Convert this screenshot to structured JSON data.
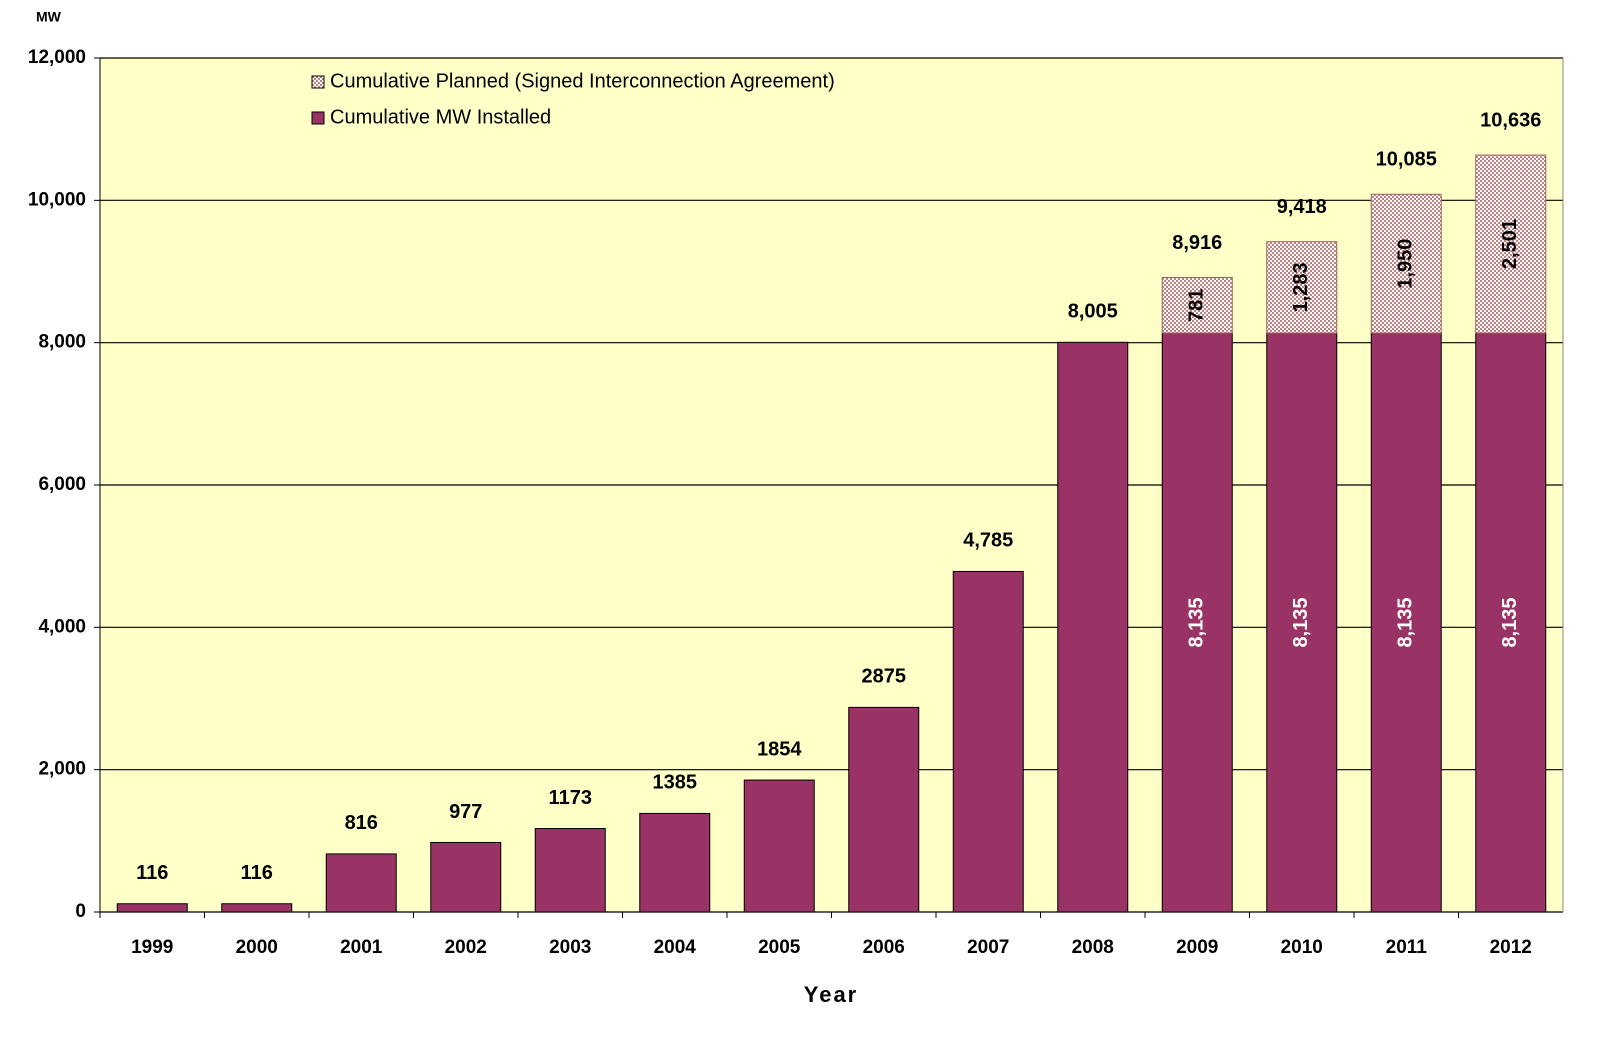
{
  "chart_data": {
    "type": "stacked_bar",
    "y_label": "MW",
    "x_label": "Year",
    "categories": [
      "1999",
      "2000",
      "2001",
      "2002",
      "2003",
      "2004",
      "2005",
      "2006",
      "2007",
      "2008",
      "2009",
      "2010",
      "2011",
      "2012"
    ],
    "series": [
      {
        "name": "Cumulative MW Installed",
        "color": "#993366",
        "values": [
          116,
          116,
          816,
          977,
          1173,
          1385,
          1854,
          2875,
          4785,
          8005,
          8135,
          8135,
          8135,
          8135
        ],
        "value_labels": [
          "116",
          "116",
          "816",
          "977",
          "1173",
          "1385",
          "1854",
          "2875",
          "4,785",
          "8,005",
          "8,135",
          "8,135",
          "8,135",
          "8,135"
        ]
      },
      {
        "name": "Cumulative Planned (Signed Interconnection Agreement)",
        "color": "#c08080",
        "values": [
          null,
          null,
          null,
          null,
          null,
          null,
          null,
          null,
          null,
          null,
          781,
          1283,
          1950,
          2501
        ],
        "value_labels": [
          null,
          null,
          null,
          null,
          null,
          null,
          null,
          null,
          null,
          null,
          "781",
          "1,283",
          "1,950",
          "2,501"
        ]
      }
    ],
    "totals": {
      "values": [
        null,
        null,
        null,
        null,
        null,
        null,
        null,
        null,
        null,
        null,
        8916,
        9418,
        10085,
        10636
      ],
      "value_labels": [
        null,
        null,
        null,
        null,
        null,
        null,
        null,
        null,
        null,
        null,
        "8,916",
        "9,418",
        "10,085",
        "10,636"
      ]
    },
    "ylim": [
      0,
      12000
    ],
    "yticks": [
      0,
      {
        "value": 2000,
        "label": "2,000"
      },
      {
        "value": 4000,
        "label": "4,000"
      },
      {
        "value": 6000,
        "label": "6,000"
      },
      {
        "value": 8000,
        "label": "8,000"
      },
      {
        "value": 10000,
        "label": "10,000"
      },
      {
        "value": 12000,
        "label": "12,000"
      }
    ],
    "grid": true,
    "legend": "top-left",
    "background": "#ffffc8"
  }
}
